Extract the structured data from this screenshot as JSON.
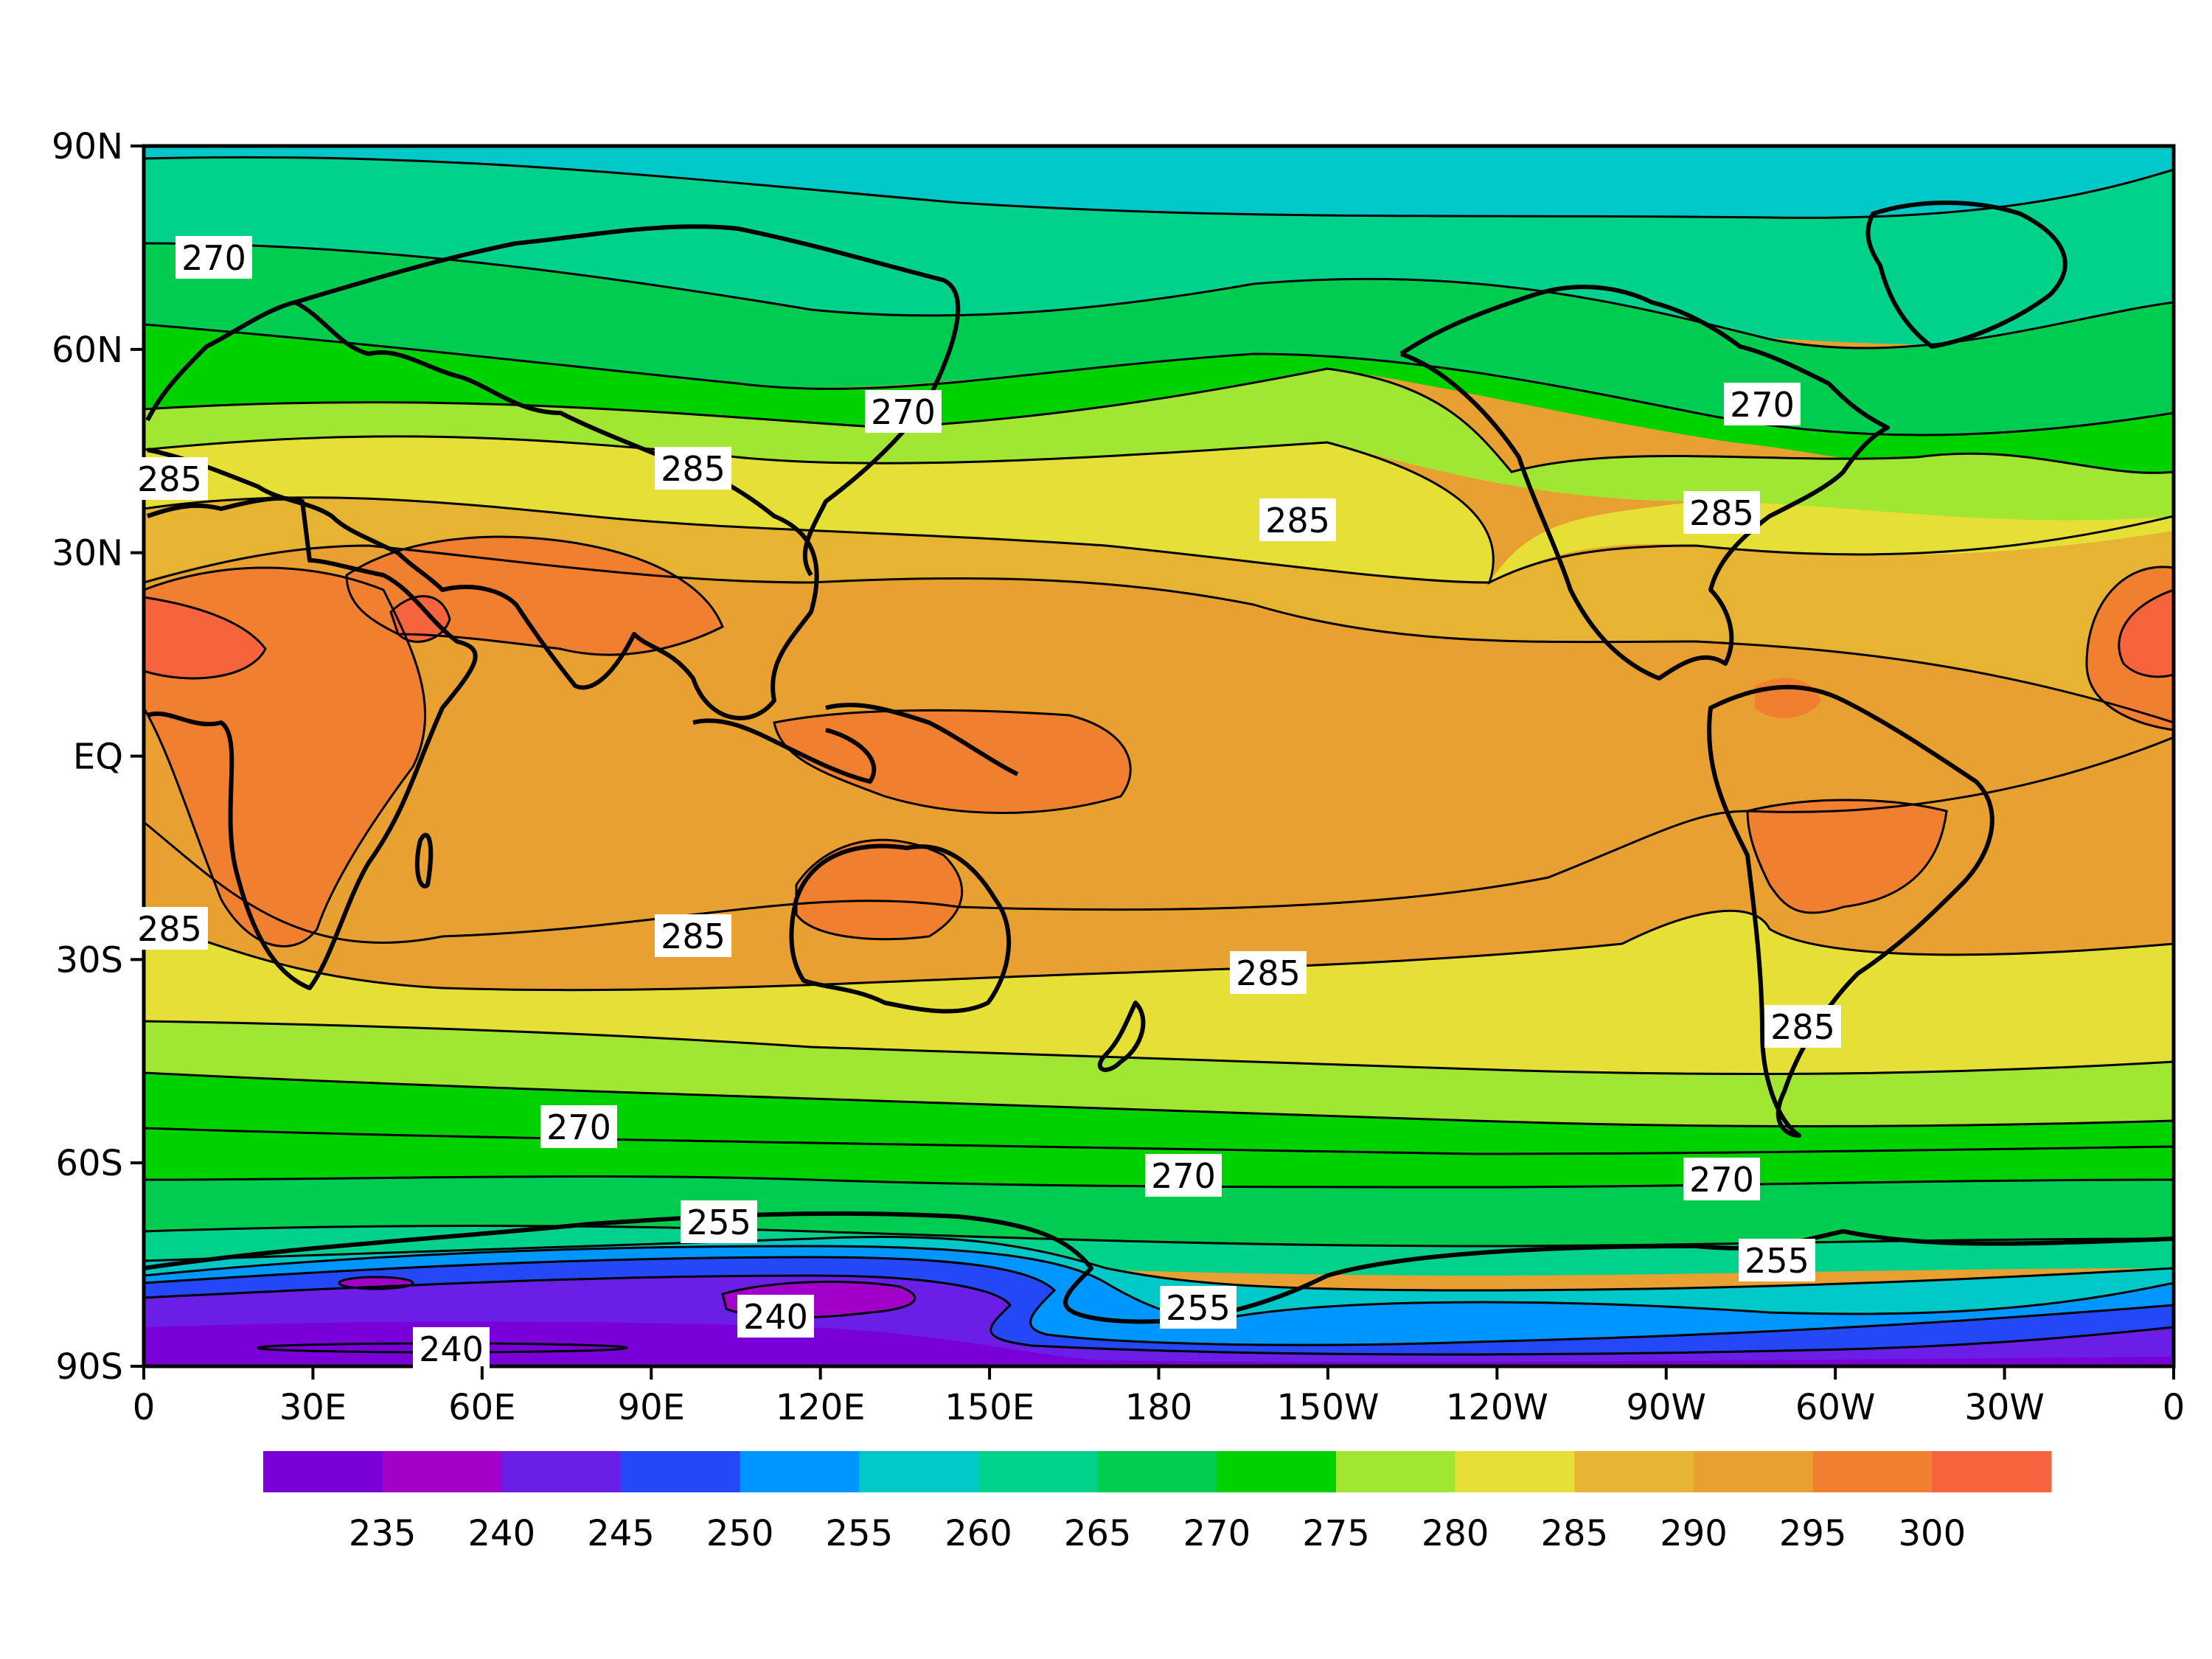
{
  "map": {
    "projection": "equirectangular (cylindrical equidistant)",
    "variable_units": "K",
    "lat_ticks": [
      "90N",
      "60N",
      "30N",
      "EQ",
      "30S",
      "60S",
      "90S"
    ],
    "lon_ticks": [
      "0",
      "30E",
      "60E",
      "90E",
      "120E",
      "150E",
      "180",
      "150W",
      "120W",
      "90W",
      "60W",
      "30W",
      "0"
    ],
    "contour_interval": 5,
    "features": [
      "filled temperature contours",
      "black contour lines",
      "coastlines"
    ]
  },
  "colorbar": {
    "colors": [
      "#7a00d9",
      "#a000c8",
      "#6a1ee6",
      "#2448f5",
      "#0096ff",
      "#00c8c8",
      "#00d28c",
      "#00cd50",
      "#00d200",
      "#a0e632",
      "#e6e036",
      "#e6b432",
      "#e8a030",
      "#f08030",
      "#f5643c"
    ],
    "labels": [
      "235",
      "240",
      "245",
      "250",
      "255",
      "260",
      "265",
      "270",
      "275",
      "280",
      "285",
      "290",
      "295",
      "300"
    ]
  },
  "contour_labels": [
    {
      "text": "270"
    },
    {
      "text": "270"
    },
    {
      "text": "270"
    },
    {
      "text": "285"
    },
    {
      "text": "285"
    },
    {
      "text": "285"
    },
    {
      "text": "285"
    },
    {
      "text": "285"
    },
    {
      "text": "285"
    },
    {
      "text": "285"
    },
    {
      "text": "285"
    },
    {
      "text": "270"
    },
    {
      "text": "270"
    },
    {
      "text": "270"
    },
    {
      "text": "255"
    },
    {
      "text": "255"
    },
    {
      "text": "255"
    },
    {
      "text": "240"
    },
    {
      "text": "240"
    }
  ]
}
